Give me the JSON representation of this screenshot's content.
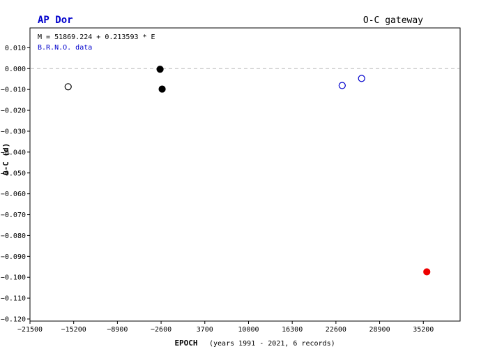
{
  "chart_data": {
    "type": "scatter",
    "title": "AP Dor",
    "title_right": "O-C gateway",
    "ylabel": "O-C (d)",
    "xlabel_main": "EPOCH",
    "xlabel_detail": "(years 1991 - 2021, 6 records)",
    "annotations": [
      "M = 51869.224 + 0.213593 * E",
      "B.R.N.O. data"
    ],
    "xlim": [
      -21500,
      40500
    ],
    "ylim": [
      -0.121,
      0.0195
    ],
    "x_ticks": [
      -21500,
      -15200,
      -8900,
      -2600,
      3700,
      10000,
      16300,
      22600,
      28900,
      35200
    ],
    "x_tick_labels": [
      "−21500",
      "−15200",
      "−8900",
      "−2600",
      "3700",
      "10000",
      "16300",
      "22600",
      "28900",
      "35200"
    ],
    "y_ticks": [
      0.01,
      0.0,
      -0.01,
      -0.02,
      -0.03,
      -0.04,
      -0.05,
      -0.06,
      -0.07,
      -0.08,
      -0.09,
      -0.1,
      -0.11,
      -0.12
    ],
    "y_tick_labels": [
      "0.010",
      "0.000",
      "−0.010",
      "−0.020",
      "−0.030",
      "−0.040",
      "−0.050",
      "−0.060",
      "−0.070",
      "−0.080",
      "−0.090",
      "−0.100",
      "−0.110",
      "−0.120"
    ],
    "zero_line": true,
    "grid": false,
    "points": [
      {
        "x": -16000,
        "y": -0.0087,
        "style": "open",
        "color": "#000000"
      },
      {
        "x": -2750,
        "y": -0.0003,
        "style": "filled",
        "color": "#000000"
      },
      {
        "x": -2450,
        "y": -0.0098,
        "style": "filled",
        "color": "#000000"
      },
      {
        "x": 23500,
        "y": -0.0081,
        "style": "open",
        "color": "#0000cc"
      },
      {
        "x": 26300,
        "y": -0.0047,
        "style": "open",
        "color": "#0000cc"
      },
      {
        "x": 35700,
        "y": -0.0974,
        "style": "filled",
        "color": "#ee0000"
      }
    ]
  },
  "colors": {
    "title": "#0000cc",
    "data_label": "#0000cc",
    "axis": "#000000",
    "zero_line": "#bbbbbb"
  }
}
